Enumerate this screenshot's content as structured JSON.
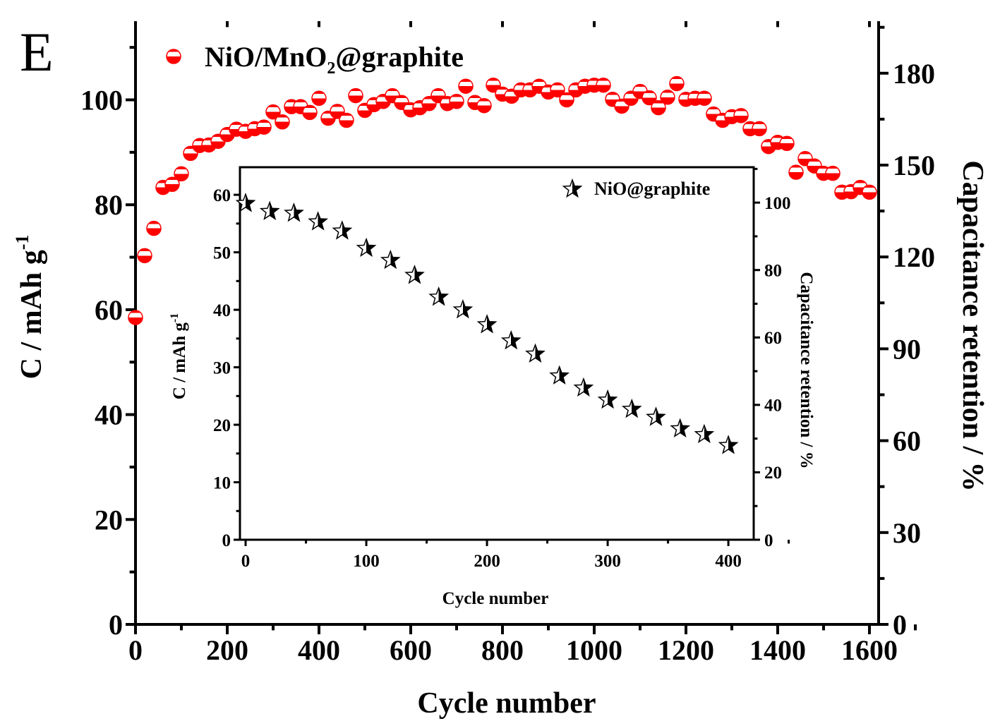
{
  "panel_label": "E",
  "colors": {
    "main_series": "#ff0000",
    "inset_series": "#000000",
    "axes": "#000000"
  },
  "chart_data": [
    {
      "type": "scatter",
      "xlabel": "Cycle number",
      "ylabel": "C / mAh g",
      "ylabel_superscript": "-1",
      "y2label": "Capacitance retention / %",
      "xlim": [
        0,
        1620
      ],
      "ylim": [
        0,
        115
      ],
      "y2lim": [
        0,
        197
      ],
      "xticks": [
        0,
        200,
        400,
        600,
        800,
        1000,
        1200,
        1400,
        1600
      ],
      "yticks": [
        0,
        20,
        40,
        60,
        80,
        100
      ],
      "y2ticks": [
        0,
        30,
        60,
        90,
        120,
        150,
        180
      ],
      "grid": false,
      "legend_placement": "top-left",
      "series": [
        {
          "name": "NiO/MnO",
          "name_subscript": "2",
          "name_suffix": "@graphite",
          "marker": "half-filled-circle",
          "x": [
            0,
            20,
            40,
            60,
            80,
            100,
            120,
            140,
            160,
            180,
            200,
            220,
            240,
            260,
            280,
            300,
            320,
            340,
            360,
            380,
            400,
            420,
            440,
            460,
            480,
            500,
            520,
            540,
            560,
            580,
            600,
            620,
            640,
            660,
            680,
            700,
            720,
            740,
            760,
            780,
            800,
            820,
            840,
            860,
            880,
            900,
            920,
            940,
            960,
            980,
            1000,
            1020,
            1040,
            1060,
            1080,
            1100,
            1120,
            1140,
            1160,
            1180,
            1200,
            1220,
            1240,
            1260,
            1280,
            1300,
            1320,
            1340,
            1360,
            1380,
            1400,
            1420,
            1440,
            1460,
            1480,
            1500,
            1520,
            1540,
            1560,
            1580,
            1600
          ],
          "y": [
            58.5,
            70.3,
            75.5,
            83.3,
            83.9,
            85.9,
            89.8,
            91.3,
            91.4,
            92.1,
            93.4,
            94.4,
            94.0,
            94.5,
            94.8,
            97.7,
            95.8,
            98.7,
            98.7,
            97.6,
            100.3,
            96.5,
            97.8,
            96.1,
            100.8,
            98.0,
            99.1,
            99.7,
            100.8,
            99.5,
            98.1,
            98.5,
            99.3,
            100.8,
            99.3,
            99.7,
            102.6,
            99.5,
            98.9,
            102.8,
            101.1,
            100.7,
            101.9,
            101.9,
            102.6,
            101.5,
            101.9,
            100.0,
            101.9,
            102.6,
            102.8,
            102.8,
            100.1,
            98.8,
            100.3,
            101.6,
            100.4,
            98.5,
            100.5,
            103.1,
            100.1,
            100.3,
            100.3,
            97.3,
            96.1,
            96.8,
            97.0,
            94.5,
            94.5,
            91.1,
            91.9,
            91.7,
            86.2,
            88.8,
            87.4,
            86.0,
            86.0,
            82.4,
            82.5,
            83.3,
            82.4
          ]
        }
      ]
    },
    {
      "type": "scatter",
      "xlabel": "Cycle number",
      "ylabel": "C / mAh g",
      "ylabel_superscript": "-1",
      "y2label": "Capacitance retention / %",
      "xlim": [
        -4.7,
        421
      ],
      "ylim": [
        0,
        64.8
      ],
      "y2lim": [
        0,
        110.5
      ],
      "xticks": [
        0,
        100,
        200,
        300,
        400
      ],
      "yticks": [
        0,
        10,
        20,
        30,
        40,
        50,
        60
      ],
      "y2ticks": [
        0,
        20,
        40,
        60,
        80,
        100
      ],
      "grid": false,
      "legend_placement": "top-right",
      "series": [
        {
          "name": "NiO@graphite",
          "marker": "half-filled-star",
          "x": [
            0,
            20,
            40,
            60,
            80,
            100,
            120,
            140,
            160,
            180,
            200,
            220,
            240,
            260,
            280,
            300,
            320,
            340,
            360,
            380,
            400
          ],
          "y": [
            58.5,
            57.1,
            56.8,
            55.3,
            53.7,
            50.7,
            48.6,
            46.0,
            42.2,
            40.0,
            37.4,
            34.6,
            32.3,
            28.5,
            26.4,
            24.3,
            22.7,
            21.3,
            19.3,
            18.3,
            16.4
          ]
        }
      ]
    }
  ]
}
